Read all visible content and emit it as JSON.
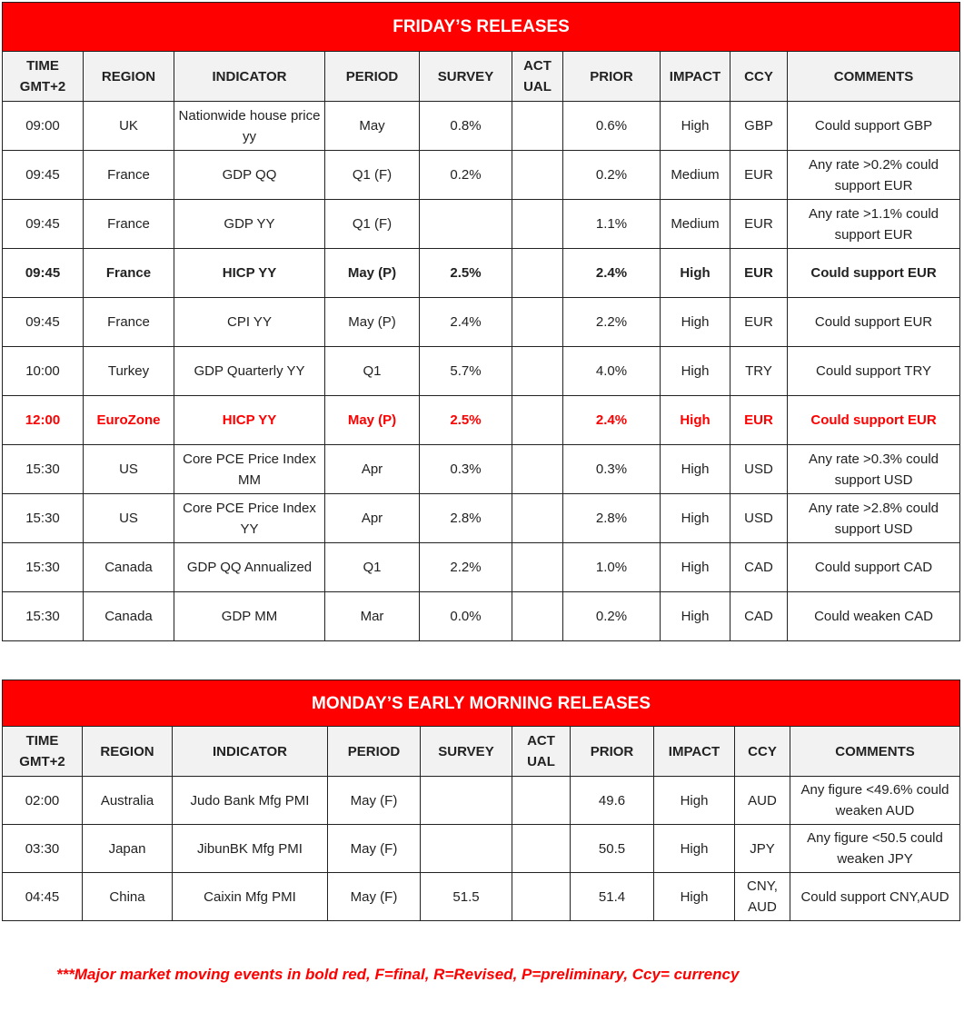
{
  "headers": [
    "TIME GMT+2",
    "REGION",
    "INDICATOR",
    "PERIOD",
    "SURVEY",
    "ACT UAL",
    "PRIOR",
    "IMPACT",
    "CCY",
    "COMMENTS"
  ],
  "friday": {
    "title": "FRIDAY’S  RELEASES",
    "rows": [
      {
        "style": "normal",
        "cells": [
          "09:00",
          "UK",
          "Nationwide house price yy",
          "May",
          "0.8%",
          "",
          "0.6%",
          "High",
          "GBP",
          "Could support GBP"
        ]
      },
      {
        "style": "normal",
        "cells": [
          "09:45",
          "France",
          "GDP QQ",
          "Q1 (F)",
          "0.2%",
          "",
          "0.2%",
          "Medium",
          "EUR",
          "Any rate >0.2% could support EUR"
        ]
      },
      {
        "style": "normal",
        "cells": [
          "09:45",
          "France",
          "GDP YY",
          "Q1 (F)",
          "",
          "",
          "1.1%",
          "Medium",
          "EUR",
          "Any rate >1.1% could support EUR"
        ]
      },
      {
        "style": "bold",
        "cells": [
          "09:45",
          "France",
          "HICP YY",
          "May (P)",
          "2.5%",
          "",
          "2.4%",
          "High",
          "EUR",
          "Could support EUR"
        ]
      },
      {
        "style": "normal",
        "cells": [
          "09:45",
          "France",
          "CPI YY",
          "May (P)",
          "2.4%",
          "",
          "2.2%",
          "High",
          "EUR",
          "Could support EUR"
        ]
      },
      {
        "style": "normal",
        "cells": [
          "10:00",
          "Turkey",
          "GDP Quarterly YY",
          "Q1",
          "5.7%",
          "",
          "4.0%",
          "High",
          "TRY",
          "Could support TRY"
        ]
      },
      {
        "style": "red",
        "cells": [
          "12:00",
          "EuroZone",
          "HICP YY",
          "May (P)",
          "2.5%",
          "",
          "2.4%",
          "High",
          "EUR",
          "Could support EUR"
        ]
      },
      {
        "style": "normal",
        "cells": [
          "15:30",
          "US",
          "Core PCE Price Index MM",
          "Apr",
          "0.3%",
          "",
          "0.3%",
          "High",
          "USD",
          "Any rate >0.3% could support USD"
        ]
      },
      {
        "style": "normal",
        "cells": [
          "15:30",
          "US",
          "Core PCE Price Index YY",
          "Apr",
          "2.8%",
          "",
          "2.8%",
          "High",
          "USD",
          "Any rate >2.8% could support USD"
        ]
      },
      {
        "style": "normal",
        "cells": [
          "15:30",
          "Canada",
          "GDP QQ Annualized",
          "Q1",
          "2.2%",
          "",
          "1.0%",
          "High",
          "CAD",
          "Could support CAD"
        ]
      },
      {
        "style": "normal",
        "cells": [
          "15:30",
          "Canada",
          "GDP MM",
          "Mar",
          "0.0%",
          "",
          "0.2%",
          "High",
          "CAD",
          "Could weaken CAD"
        ]
      }
    ]
  },
  "monday": {
    "title": "MONDAY’S EARLY MORNING RELEASES",
    "rows": [
      {
        "style": "normal",
        "cells": [
          "02:00",
          "Australia",
          "Judo Bank Mfg PMI",
          "May (F)",
          "",
          "",
          "49.6",
          "High",
          "AUD",
          "Any figure <49.6% could weaken AUD"
        ]
      },
      {
        "style": "normal",
        "cells": [
          "03:30",
          "Japan",
          "JibunBK Mfg PMI",
          "May (F)",
          "",
          "",
          "50.5",
          "High",
          "JPY",
          "Any figure <50.5 could weaken JPY"
        ]
      },
      {
        "style": "normal",
        "cells": [
          "04:45",
          "China",
          "Caixin Mfg PMI",
          "May (F)",
          "51.5",
          "",
          "51.4",
          "High",
          "CNY, AUD",
          "Could support CNY,AUD"
        ]
      }
    ]
  },
  "footnote": "***Major market moving events in bold red, F=final, R=Revised, P=preliminary, Ccy= currency",
  "colors": {
    "title_bg": "#ff0000",
    "highlight_text": "#ff0000",
    "header_bg": "#f2f2f2"
  }
}
